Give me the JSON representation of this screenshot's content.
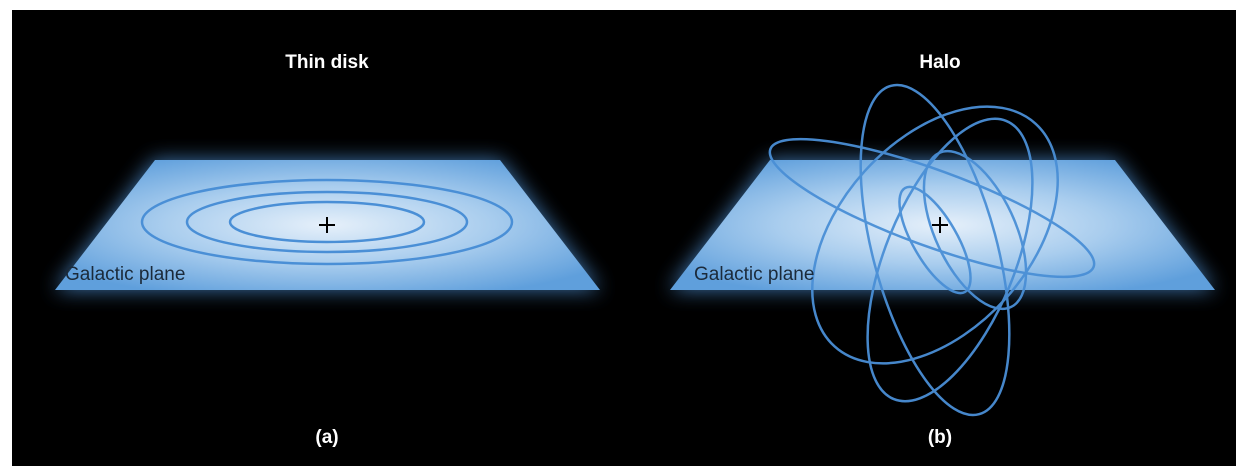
{
  "panels": [
    {
      "title": "Thin disk",
      "plane_label": "Galactic plane",
      "caption": "(a)"
    },
    {
      "title": "Halo",
      "plane_label": "Galactic plane",
      "caption": "(b)"
    }
  ]
}
